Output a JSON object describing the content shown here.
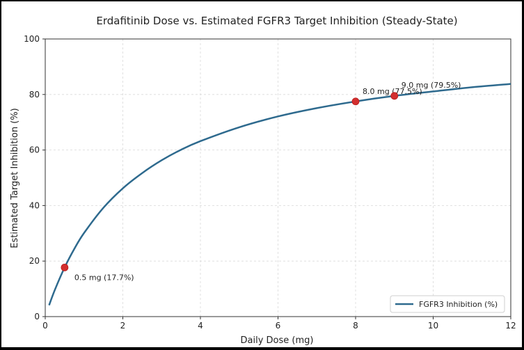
{
  "chart_data": {
    "type": "line",
    "title": "Erdafitinib Dose vs. Estimated FGFR3 Target Inhibition (Steady-State)",
    "xlabel": "Daily Dose (mg)",
    "ylabel": "Estimated Target Inhibition (%)",
    "xlim": [
      0,
      12
    ],
    "ylim": [
      0,
      100
    ],
    "xticks": [
      0,
      2,
      4,
      6,
      8,
      10,
      12
    ],
    "yticks": [
      0,
      20,
      40,
      60,
      80,
      100
    ],
    "grid": true,
    "legend_position": "lower-right",
    "series": [
      {
        "name": "FGFR3 Inhibition (%)",
        "color": "#2e6a8e",
        "x": [
          0.1,
          0.25,
          0.5,
          0.75,
          1,
          1.5,
          2,
          2.5,
          3,
          3.5,
          4,
          5,
          6,
          7,
          8,
          9,
          10,
          11,
          12
        ],
        "y": [
          4.1,
          9.7,
          17.7,
          24.4,
          30.1,
          39.2,
          46.2,
          51.7,
          56.3,
          60.1,
          63.2,
          68.2,
          72.1,
          75.1,
          77.5,
          79.5,
          81.1,
          82.6,
          83.8
        ]
      }
    ],
    "highlight_color": "#d32f2f",
    "highlights": [
      {
        "x": 0.5,
        "y": 17.7,
        "label": "0.5 mg (17.7%)"
      },
      {
        "x": 8.0,
        "y": 77.5,
        "label": "8.0 mg (77.5%)"
      },
      {
        "x": 9.0,
        "y": 79.5,
        "label": "9.0 mg (79.5%)"
      }
    ]
  }
}
